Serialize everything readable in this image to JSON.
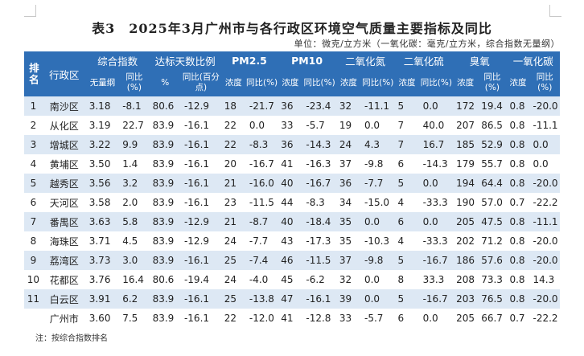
{
  "title": "表3　2025年3月广州市与各行政区环境空气质量主要指标及同比",
  "unit_note": "单位：微克/立方米（一氧化碳：毫克/立方米，综合指数无量纲）",
  "header": {
    "rank": "排名",
    "district": "行政区",
    "groups": [
      "综合指数",
      "达标天数比例",
      "PM2.5",
      "PM10",
      "二氧化氮",
      "二氧化硫",
      "臭氧",
      "一氧化碳"
    ],
    "sub": [
      "无量纲",
      "同比(%)",
      "%",
      "同比(百分点)",
      "浓度",
      "同比(%)",
      "浓度",
      "同比(%)",
      "浓度",
      "同比(%)",
      "浓度",
      "同比(%)",
      "浓度",
      "同比(%)",
      "浓度",
      "同比(%)"
    ]
  },
  "rows": [
    [
      "1",
      "南沙区",
      "3.18",
      "-8.1",
      "80.6",
      "-12.9",
      "18",
      "-21.7",
      "36",
      "-23.4",
      "32",
      "-11.1",
      "5",
      "0.0",
      "172",
      "19.4",
      "0.8",
      "-20.0"
    ],
    [
      "2",
      "从化区",
      "3.19",
      "22.7",
      "83.9",
      "-16.1",
      "22",
      "0.0",
      "33",
      "-5.7",
      "19",
      "0.0",
      "7",
      "40.0",
      "207",
      "86.5",
      "0.8",
      "-11.1"
    ],
    [
      "3",
      "增城区",
      "3.22",
      "9.9",
      "83.9",
      "-16.1",
      "22",
      "-8.3",
      "36",
      "-14.3",
      "24",
      "4.3",
      "7",
      "16.7",
      "185",
      "52.9",
      "0.8",
      "0.0"
    ],
    [
      "4",
      "黄埔区",
      "3.50",
      "1.4",
      "83.9",
      "-16.1",
      "20",
      "-16.7",
      "41",
      "-16.3",
      "37",
      "-9.8",
      "6",
      "-14.3",
      "179",
      "55.7",
      "0.8",
      "0.0"
    ],
    [
      "5",
      "越秀区",
      "3.56",
      "3.2",
      "83.9",
      "-16.1",
      "21",
      "-16.0",
      "40",
      "-16.7",
      "36",
      "-7.7",
      "5",
      "0.0",
      "194",
      "64.4",
      "0.8",
      "-20.0"
    ],
    [
      "6",
      "天河区",
      "3.58",
      "2.0",
      "83.9",
      "-16.1",
      "23",
      "-11.5",
      "44",
      "-8.3",
      "34",
      "-15.0",
      "4",
      "-33.3",
      "190",
      "57.0",
      "0.7",
      "-22.2"
    ],
    [
      "7",
      "番禺区",
      "3.63",
      "5.8",
      "83.9",
      "-12.9",
      "21",
      "-8.7",
      "40",
      "-18.4",
      "35",
      "0.0",
      "6",
      "0.0",
      "205",
      "47.5",
      "0.8",
      "-11.1"
    ],
    [
      "8",
      "海珠区",
      "3.71",
      "4.5",
      "83.9",
      "-12.9",
      "24",
      "-7.7",
      "43",
      "-17.3",
      "35",
      "-10.3",
      "4",
      "-33.3",
      "202",
      "71.2",
      "0.8",
      "-20.0"
    ],
    [
      "9",
      "荔湾区",
      "3.73",
      "3.0",
      "83.9",
      "-16.1",
      "25",
      "-7.4",
      "46",
      "-11.5",
      "37",
      "-9.8",
      "5",
      "-16.7",
      "186",
      "57.6",
      "0.8",
      "-20.0"
    ],
    [
      "10",
      "花都区",
      "3.76",
      "16.4",
      "80.6",
      "-19.4",
      "24",
      "-4.0",
      "45",
      "-6.2",
      "32",
      "0.0",
      "8",
      "33.3",
      "208",
      "73.3",
      "0.8",
      "14.3"
    ],
    [
      "11",
      "白云区",
      "3.91",
      "6.2",
      "83.9",
      "-16.1",
      "25",
      "-13.8",
      "47",
      "-16.1",
      "39",
      "0.0",
      "5",
      "-16.7",
      "203",
      "76.5",
      "0.8",
      "-20.0"
    ],
    [
      "",
      "广州市",
      "3.60",
      "7.5",
      "83.9",
      "-16.1",
      "22",
      "-12.0",
      "41",
      "-12.8",
      "33",
      "-5.7",
      "6",
      "0.0",
      "205",
      "66.7",
      "0.7",
      "-22.2"
    ]
  ],
  "footnote": "注：按综合指数排名"
}
